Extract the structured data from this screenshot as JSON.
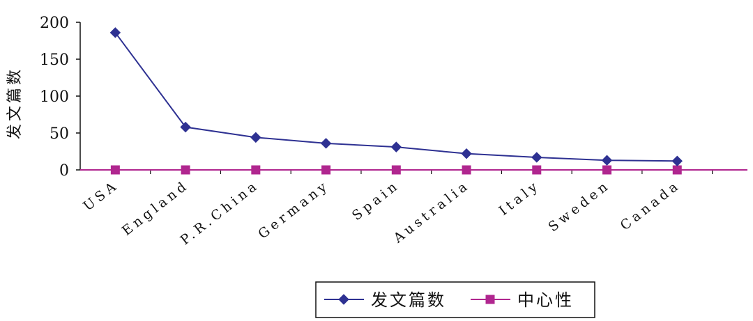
{
  "chart_data": {
    "type": "line",
    "categories": [
      "USA",
      "England",
      "P.R.China",
      "Germany",
      "Spain",
      "Australia",
      "Italy",
      "Sweden",
      "Canada"
    ],
    "series": [
      {
        "name": "发文篇数",
        "values": [
          186,
          58,
          44,
          36,
          31,
          22,
          17,
          13,
          12
        ],
        "color": "#2e3192",
        "marker": "diamond"
      },
      {
        "name": "中心性",
        "values": [
          0,
          0,
          0,
          0,
          0,
          0,
          0,
          0,
          0
        ],
        "color": "#b0268f",
        "marker": "square"
      }
    ],
    "ylabel": "发文篇数",
    "ylim": [
      0,
      200
    ],
    "yticks": [
      "200",
      "150",
      "100",
      "50",
      "0"
    ],
    "grid": false,
    "legend_position": "bottom"
  }
}
